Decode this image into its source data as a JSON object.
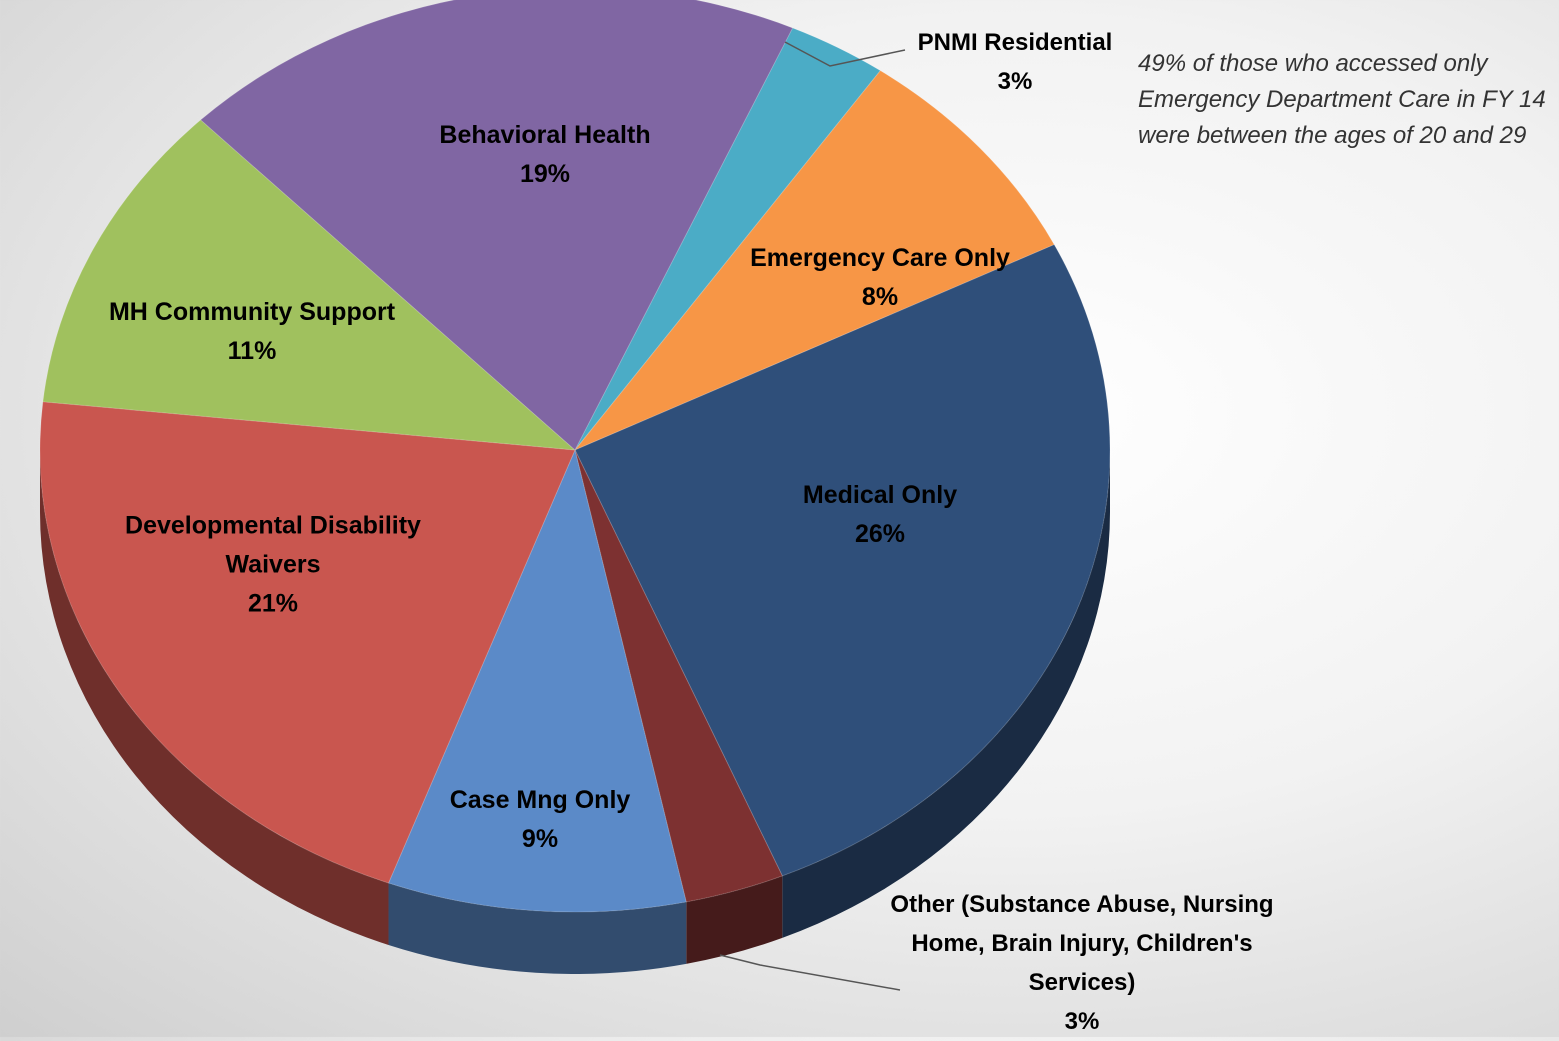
{
  "chart_data": {
    "type": "pie3d",
    "categories": [
      "PNMI Residential",
      "Emergency Care Only",
      "Medical Only",
      "Other (Substance Abuse, Nursing Home, Brain Injury, Children's Services)",
      "Case Mng Only",
      "Developmental Disability Waivers",
      "MH Community Support",
      "Behavioral Health"
    ],
    "values": [
      3,
      8,
      26,
      3,
      9,
      21,
      11,
      19
    ],
    "value_labels": [
      "3%",
      "8%",
      "26%",
      "3%",
      "9%",
      "21%",
      "11%",
      "19%"
    ],
    "colors": [
      "#4bacc6",
      "#f79646",
      "#2f4f7a",
      "#7d3131",
      "#5b8ac8",
      "#c9564f",
      "#a0c15e",
      "#8066a3"
    ],
    "annotation": "49% of those who accessed only Emergency Department Care in FY 14 were between the ages of 20 and 29"
  }
}
